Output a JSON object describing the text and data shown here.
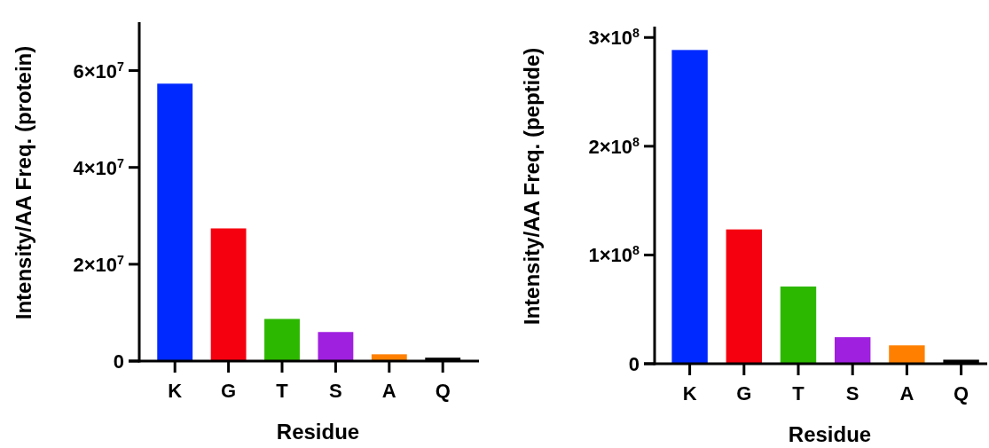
{
  "chart_data": [
    {
      "type": "bar",
      "xlabel": "Residue",
      "ylabel": "Intensity/AA Freq. (protein)",
      "categories": [
        "K",
        "G",
        "T",
        "S",
        "A",
        "Q"
      ],
      "values": [
        57300000,
        27400000,
        8700000,
        6000000,
        1400000,
        700000
      ],
      "colors": [
        "#0029ff",
        "#f5000f",
        "#2db800",
        "#a020e0",
        "#ff8000",
        "#000000"
      ],
      "ylim": [
        0,
        70000000
      ],
      "yticks": [
        0,
        {
          "value": 20000000,
          "label": "2×10$^{7}$"
        },
        {
          "value": 40000000,
          "label": "4×10$^{7}$"
        },
        {
          "value": 60000000,
          "label": "6×10$^{7}$"
        }
      ]
    },
    {
      "type": "bar",
      "xlabel": "Residue",
      "ylabel": "Intensity/AA Freq. (peptide)",
      "categories": [
        "K",
        "G",
        "T",
        "S",
        "A",
        "Q"
      ],
      "values": [
        288500000,
        123500000,
        71000000,
        24400000,
        16900000,
        3700000
      ],
      "colors": [
        "#0029ff",
        "#f5000f",
        "#2db800",
        "#a020e0",
        "#ff8000",
        "#000000"
      ],
      "ylim": [
        0,
        310000000
      ],
      "yticks": [
        0,
        {
          "value": 100000000,
          "label": "1×10$^{8}$"
        },
        {
          "value": 200000000,
          "label": "2×10$^{8}$"
        },
        {
          "value": 300000000,
          "label": "3×10$^{8}$"
        }
      ]
    }
  ]
}
